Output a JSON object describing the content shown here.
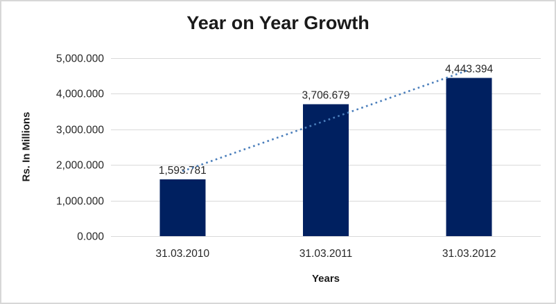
{
  "chart_data": {
    "type": "bar",
    "title": "Year on Year Growth",
    "xlabel": "Years",
    "ylabel": "Rs. In Millions",
    "categories": [
      "31.03.2010",
      "31.03.2011",
      "31.03.2012"
    ],
    "values": [
      1593.781,
      3706.679,
      4443.394
    ],
    "data_labels": [
      "1,593.781",
      "3,706.679",
      "4,443.394"
    ],
    "ylim": [
      0,
      5000
    ],
    "ytick_interval": 1000,
    "ytick_labels": [
      "0.000",
      "1,000.000",
      "2,000.000",
      "3,000.000",
      "4,000.000",
      "5,000.000"
    ],
    "grid": "horizontal",
    "legend": "none",
    "trendline": {
      "type": "linear",
      "style": "dotted"
    },
    "colors": {
      "bar": "#002060",
      "trendline": "#4a7ebb",
      "gridline": "#d9d9d9",
      "axis_line": "#d9d9d9",
      "text": "#262626",
      "title_text": "#1a1a1a",
      "frame_border": "#d7d7d7",
      "background": "#ffffff"
    }
  }
}
